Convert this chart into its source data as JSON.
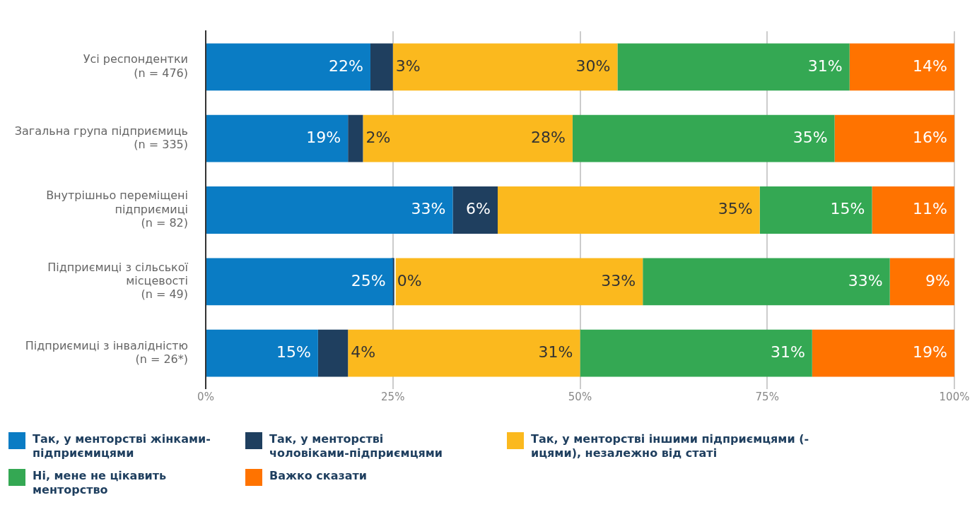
{
  "chart_data": {
    "type": "bar",
    "orientation": "horizontal",
    "stacked": true,
    "categories": [
      "Усі респондентки\n(n = 476)",
      "Загальна група підприємиць\n(n = 335)",
      "Внутрішньо переміщені\nпідприємиці\n(n = 82)",
      "Підприємиці з сільської\nмісцевості\n(n = 49)",
      "Підприємиці з інвалідністю\n(n = 26*)"
    ],
    "series": [
      {
        "name": "Так, у менторстві жінками-підприємицями",
        "color": "#0a7cc4",
        "values": [
          22,
          19,
          33,
          25,
          15
        ],
        "value_labels": [
          "22%",
          "19%",
          "33%",
          "25%",
          "15%"
        ]
      },
      {
        "name": "Так, у менторстві чоловіками-підприємцями",
        "color": "#1f3f5f",
        "values": [
          3,
          2,
          6,
          0,
          4
        ],
        "value_labels": [
          "3%",
          "2%",
          "6%",
          "0%",
          "4%"
        ]
      },
      {
        "name": "Так, у менторстві іншими підприємцями (-ицями), незалежно від статі",
        "color": "#fbb91e",
        "values": [
          30,
          28,
          35,
          33,
          31
        ],
        "value_labels": [
          "30%",
          "28%",
          "35%",
          "33%",
          "31%"
        ]
      },
      {
        "name": "Ні, мене не цікавить менторство",
        "color": "#34a853",
        "values": [
          31,
          35,
          15,
          33,
          31
        ],
        "value_labels": [
          "31%",
          "35%",
          "15%",
          "33%",
          "31%"
        ]
      },
      {
        "name": "Важко сказати",
        "color": "#ff7300",
        "values": [
          14,
          16,
          11,
          9,
          19
        ],
        "value_labels": [
          "14%",
          "16%",
          "11%",
          "9%",
          "19%"
        ]
      }
    ],
    "xlim": [
      0,
      100
    ],
    "xticks": [
      {
        "value": 0,
        "label": "0%"
      },
      {
        "value": 25,
        "label": "25%"
      },
      {
        "value": 50,
        "label": "50%"
      },
      {
        "value": 75,
        "label": "75%"
      },
      {
        "value": 100,
        "label": "100%"
      }
    ],
    "grid": "x",
    "legend": "bottom"
  }
}
